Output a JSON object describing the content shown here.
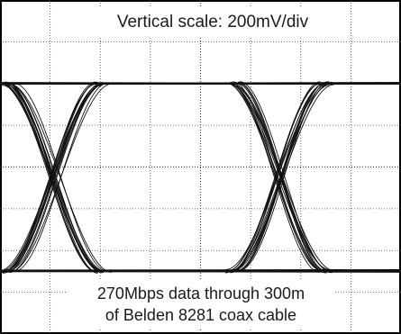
{
  "chart_data": {
    "type": "eye-diagram",
    "title": "Vertical scale: 200mV/div",
    "caption_lines": [
      "270Mbps data through 300m",
      "of Belden 8281 coax cable"
    ],
    "vertical_scale": "200mV/div",
    "grid": true,
    "grid_divisions": {
      "horizontal": 8,
      "vertical": 8
    },
    "levels_div": {
      "high": 6.0,
      "low": 1.5
    },
    "crossings_div": [
      1.1,
      5.6
    ],
    "crossing_level_div": 3.75,
    "colors": {
      "trace": "#111111",
      "grid": "#444444",
      "background": "#ffffff",
      "frame": "#000000"
    }
  }
}
